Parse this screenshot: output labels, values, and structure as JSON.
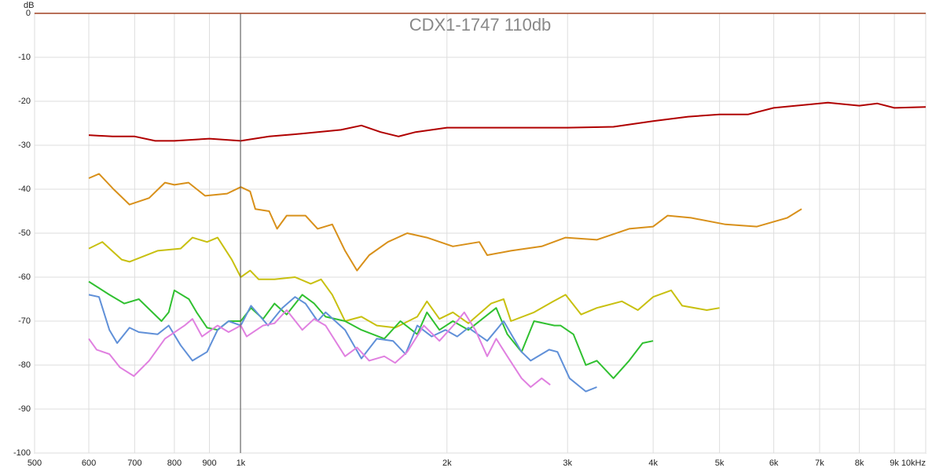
{
  "chart_data": {
    "type": "line",
    "title": "CDX1-1747 110db",
    "ylabel": "dB",
    "xscale": "log",
    "grid": true,
    "xlim": [
      500,
      10000
    ],
    "xticks": [
      500,
      600,
      700,
      800,
      900,
      {
        "value": 1000,
        "label": "1k"
      },
      {
        "value": 2000,
        "label": "2k"
      },
      {
        "value": 3000,
        "label": "3k"
      },
      {
        "value": 4000,
        "label": "4k"
      },
      {
        "value": 5000,
        "label": "5k"
      },
      {
        "value": 6000,
        "label": "6k"
      },
      {
        "value": 7000,
        "label": "7k"
      },
      {
        "value": 8000,
        "label": "8k"
      },
      {
        "value": 9000,
        "label": "9k"
      },
      {
        "value": 10000,
        "label": "10kHz"
      }
    ],
    "ylim": [
      -100,
      0
    ],
    "yticks": [
      0,
      -10,
      -20,
      -30,
      -40,
      -50,
      -60,
      -70,
      -80,
      -90,
      -100
    ],
    "series": [
      {
        "color": "#b00000",
        "x": [
          600,
          650,
          700,
          750,
          800,
          900,
          1000,
          1100,
          1200,
          1400,
          1500,
          1600,
          1700,
          1800,
          2000,
          2500,
          3000,
          3500,
          4000,
          4500,
          5000,
          5500,
          6000,
          7000,
          7200,
          8000,
          8500,
          9000,
          10000
        ],
        "values": [
          -27.7,
          -28,
          -28,
          -29,
          -29,
          -28.5,
          -29,
          -28,
          -27.5,
          -26.5,
          -25.5,
          -27,
          -28,
          -27,
          -26,
          -26,
          -26,
          -25.8,
          -24.5,
          -23.5,
          -23,
          -23,
          -21.5,
          -20.5,
          -20.3,
          -21,
          -20.5,
          -21.5,
          -21.3
        ]
      },
      {
        "color": "#d8901a",
        "x": [
          600,
          621,
          652,
          688,
          735,
          775,
          800,
          839,
          887,
          955,
          1000,
          1032,
          1050,
          1100,
          1130,
          1167,
          1243,
          1295,
          1360,
          1420,
          1478,
          1540,
          1640,
          1750,
          1870,
          2040,
          2230,
          2290,
          2480,
          2750,
          2980,
          3310,
          3690,
          4000,
          4200,
          4540,
          5100,
          5670,
          6280,
          6590
        ],
        "values": [
          -37.5,
          -36.5,
          -40,
          -43.5,
          -42,
          -38.5,
          -39,
          -38.5,
          -41.5,
          -41,
          -39.5,
          -40.5,
          -44.5,
          -45,
          -49,
          -46,
          -46,
          -49,
          -48,
          -54,
          -58.5,
          -55,
          -52,
          -50,
          -51,
          -53,
          -52,
          -55,
          -54,
          -53,
          -51,
          -51.5,
          -49,
          -48.5,
          -46,
          -46.5,
          -48,
          -48.5,
          -46.5,
          -44.5
        ]
      },
      {
        "color": "#c8c010",
        "x": [
          600,
          628,
          670,
          688,
          756,
          817,
          850,
          893,
          925,
          970,
          1000,
          1032,
          1062,
          1120,
          1200,
          1265,
          1310,
          1360,
          1420,
          1500,
          1580,
          1680,
          1810,
          1870,
          1950,
          2040,
          2150,
          2320,
          2420,
          2480,
          2680,
          2860,
          2980,
          3140,
          3310,
          3600,
          3800,
          4000,
          4250,
          4410,
          4790,
          5000
        ],
        "values": [
          -53.5,
          -52,
          -56,
          -56.5,
          -54,
          -53.5,
          -51,
          -52,
          -51,
          -56,
          -60,
          -58.5,
          -60.5,
          -60.5,
          -60,
          -61.5,
          -60.5,
          -64,
          -70,
          -69,
          -71,
          -71.5,
          -69,
          -65.5,
          -69.5,
          -68,
          -70.5,
          -66,
          -65,
          -70,
          -68,
          -65.5,
          -64,
          -68.5,
          -67,
          -65.5,
          -67.5,
          -64.5,
          -63,
          -66.5,
          -67.5,
          -67
        ]
      },
      {
        "color": "#30c030",
        "x": [
          600,
          643,
          676,
          710,
          766,
          785,
          800,
          840,
          862,
          893,
          925,
          960,
          1000,
          1035,
          1078,
          1120,
          1167,
          1230,
          1280,
          1330,
          1420,
          1500,
          1620,
          1710,
          1810,
          1870,
          1950,
          2040,
          2150,
          2360,
          2450,
          2570,
          2680,
          2870,
          2930,
          3060,
          3190,
          3310,
          3500,
          3690,
          3860,
          4000
        ],
        "values": [
          -61,
          -64,
          -66,
          -65,
          -70,
          -68,
          -63,
          -65,
          -68,
          -71.5,
          -72,
          -70,
          -70,
          -67,
          -69.5,
          -66,
          -68.5,
          -64,
          -66,
          -69,
          -70,
          -72,
          -74,
          -70,
          -73,
          -68,
          -72,
          -70,
          -72,
          -67,
          -73,
          -77,
          -70,
          -71,
          -71,
          -73,
          -80,
          -79,
          -83,
          -79,
          -75,
          -74.5
        ]
      },
      {
        "color": "#6090d8",
        "x": [
          600,
          621,
          643,
          660,
          688,
          710,
          756,
          785,
          817,
          850,
          893,
          925,
          960,
          1000,
          1035,
          1096,
          1150,
          1200,
          1243,
          1295,
          1330,
          1420,
          1500,
          1580,
          1668,
          1740,
          1810,
          1900,
          1990,
          2070,
          2150,
          2290,
          2420,
          2570,
          2650,
          2820,
          2900,
          3020,
          3190,
          3310
        ],
        "values": [
          -64,
          -64.5,
          -72,
          -75,
          -71.5,
          -72.5,
          -73,
          -71,
          -75.5,
          -79,
          -77,
          -72,
          -70,
          -71,
          -66.5,
          -71,
          -67,
          -64.5,
          -66,
          -70,
          -68,
          -72,
          -78.5,
          -74,
          -74.5,
          -77.5,
          -71,
          -73.5,
          -72,
          -73.5,
          -71.5,
          -74.5,
          -70,
          -77,
          -79,
          -76.5,
          -77,
          -83,
          -86,
          -85
        ]
      },
      {
        "color": "#e080e0",
        "x": [
          600,
          616,
          643,
          666,
          698,
          735,
          775,
          828,
          850,
          878,
          925,
          960,
          1000,
          1020,
          1078,
          1120,
          1167,
          1230,
          1280,
          1330,
          1420,
          1478,
          1540,
          1620,
          1680,
          1750,
          1850,
          1950,
          2070,
          2120,
          2200,
          2290,
          2360,
          2450,
          2570,
          2650,
          2750,
          2830
        ],
        "values": [
          -74,
          -76.5,
          -77.5,
          -80.5,
          -82.5,
          -79,
          -74,
          -71,
          -69.5,
          -73.5,
          -71,
          -72.5,
          -71,
          -73.5,
          -71,
          -70.5,
          -67.5,
          -72,
          -69.5,
          -71,
          -78,
          -76,
          -79,
          -78,
          -79.5,
          -77,
          -71,
          -74.5,
          -70,
          -68,
          -72,
          -78,
          -74,
          -78,
          -83,
          -85,
          -83,
          -84.5
        ]
      }
    ]
  }
}
